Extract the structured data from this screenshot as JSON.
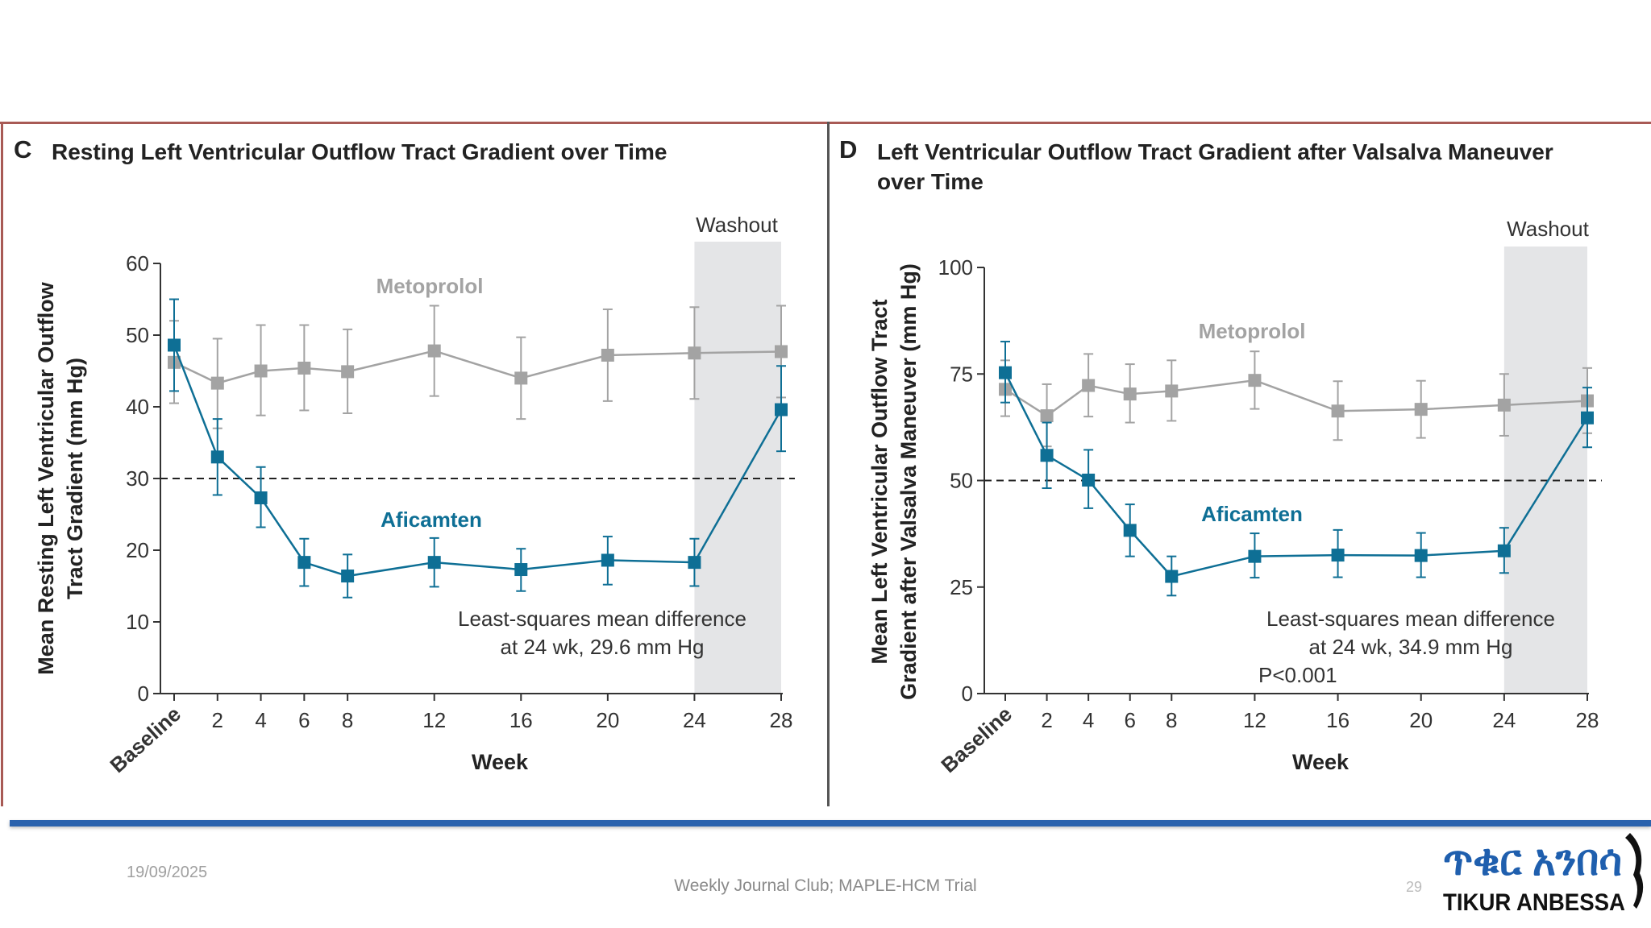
{
  "footer": {
    "date": "19/09/2025",
    "center": "Weekly Journal Club; MAPLE-HCM Trial",
    "page": "29",
    "logo_text": "ጥቁር አንበሳ TIKUR ANBESSA"
  },
  "colors": {
    "aficamten": "#0e6f95",
    "metoprolol": "#a3a3a3",
    "washout": "#e4e5e7",
    "top_rule": "#a85a55",
    "blue_bar": "#2a62ad"
  },
  "chart_data": [
    {
      "type": "line",
      "panel": "C",
      "title": "Resting Left Ventricular Outflow Tract Gradient over Time",
      "ylabel": [
        "Mean Resting Left Ventricular Outflow",
        "Tract Gradient (mm Hg)"
      ],
      "xlabel": "Week",
      "x": [
        0,
        2,
        4,
        6,
        8,
        12,
        16,
        20,
        24,
        28
      ],
      "xtick_labels": [
        "Baseline",
        "2",
        "4",
        "6",
        "8",
        "12",
        "16",
        "20",
        "24",
        "28"
      ],
      "ylim": [
        0,
        60
      ],
      "yticks": [
        0,
        10,
        20,
        30,
        40,
        50,
        60
      ],
      "reference_line": 30,
      "washout": {
        "label": "Washout",
        "from": 24,
        "to": 28
      },
      "series": [
        {
          "name": "Metoprolol",
          "color": "#a3a3a3",
          "values": [
            46.2,
            43.3,
            45.0,
            45.4,
            44.9,
            47.8,
            44.0,
            47.2,
            47.5,
            47.7
          ],
          "lower": [
            40.5,
            37.0,
            38.8,
            39.5,
            39.1,
            41.5,
            38.3,
            40.8,
            41.1,
            41.3
          ],
          "upper": [
            52.0,
            49.5,
            51.4,
            51.4,
            50.8,
            54.1,
            49.7,
            53.6,
            53.9,
            54.1
          ]
        },
        {
          "name": "Aficamten",
          "color": "#0e6f95",
          "values": [
            48.6,
            33.0,
            27.3,
            18.3,
            16.4,
            18.3,
            17.3,
            18.6,
            18.3,
            39.6
          ],
          "lower": [
            42.2,
            27.7,
            23.2,
            15.0,
            13.4,
            14.9,
            14.3,
            15.2,
            15.0,
            33.8
          ],
          "upper": [
            55.0,
            38.3,
            31.6,
            21.6,
            19.4,
            21.7,
            20.2,
            21.9,
            21.6,
            45.7
          ]
        }
      ],
      "annotations": [
        "Least-squares mean difference",
        "at 24 wk, 29.6 mm Hg"
      ]
    },
    {
      "type": "line",
      "panel": "D",
      "title": [
        "Left Ventricular Outflow Tract Gradient after Valsalva Maneuver",
        "over Time"
      ],
      "ylabel": [
        "Mean Left Ventricular Outflow Tract",
        "Gradient after Valsalva Maneuver (mm Hg)"
      ],
      "xlabel": "Week",
      "x": [
        0,
        2,
        4,
        6,
        8,
        12,
        16,
        20,
        24,
        28
      ],
      "xtick_labels": [
        "Baseline",
        "2",
        "4",
        "6",
        "8",
        "12",
        "16",
        "20",
        "24",
        "28"
      ],
      "ylim": [
        0,
        100
      ],
      "yticks": [
        0,
        25,
        50,
        75,
        100
      ],
      "reference_line": 50,
      "washout": {
        "label": "Washout",
        "from": 24,
        "to": 28
      },
      "series": [
        {
          "name": "Metoprolol",
          "color": "#a3a3a3",
          "values": [
            71.4,
            65.2,
            72.3,
            70.3,
            71.0,
            73.5,
            66.3,
            66.7,
            67.7,
            68.7
          ],
          "lower": [
            65.1,
            58.0,
            65.0,
            63.6,
            64.0,
            66.8,
            59.5,
            60.0,
            60.5,
            61.1
          ],
          "upper": [
            78.2,
            72.6,
            79.7,
            77.3,
            78.2,
            80.3,
            73.3,
            73.4,
            75.0,
            76.4
          ]
        },
        {
          "name": "Aficamten",
          "color": "#0e6f95",
          "values": [
            75.3,
            55.9,
            50.1,
            38.3,
            27.5,
            32.2,
            32.5,
            32.4,
            33.5,
            64.7
          ],
          "lower": [
            68.3,
            48.2,
            43.5,
            32.2,
            23.0,
            27.2,
            27.3,
            27.3,
            28.3,
            57.8
          ],
          "upper": [
            82.6,
            63.6,
            57.2,
            44.4,
            32.2,
            37.6,
            38.4,
            37.7,
            38.9,
            71.8
          ]
        }
      ],
      "annotations": [
        "Least-squares mean difference",
        "at 24 wk, 34.9 mm Hg",
        "P<0.001"
      ]
    }
  ]
}
